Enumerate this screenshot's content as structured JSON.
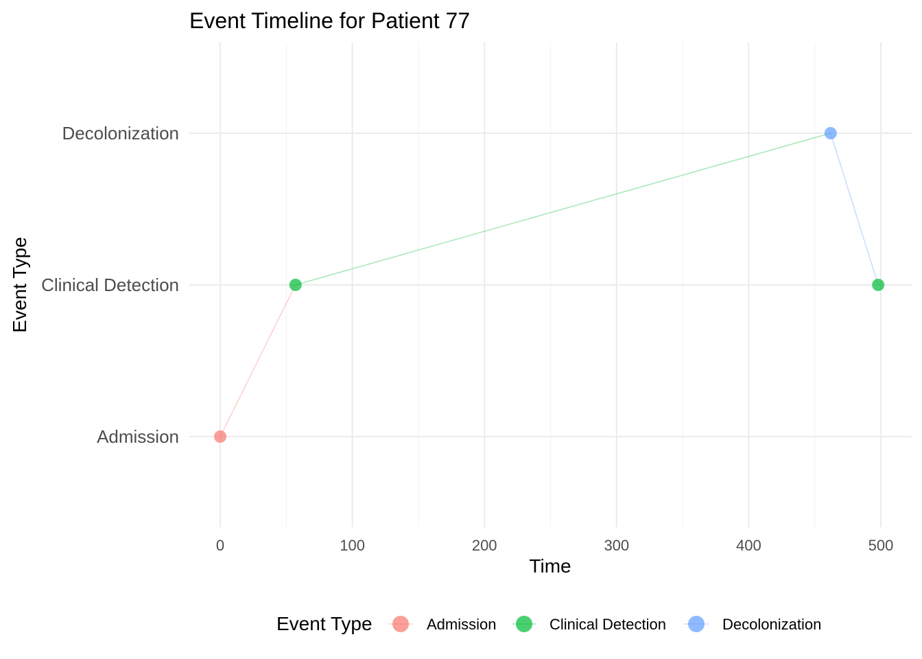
{
  "chart_data": {
    "type": "line",
    "title": "Event Timeline for Patient 77",
    "xlabel": "Time",
    "ylabel": "Event Type",
    "xlim": [
      -25,
      525
    ],
    "x_ticks": [
      0,
      100,
      200,
      300,
      400,
      500
    ],
    "x_tick_labels": [
      "0",
      "100",
      "200",
      "300",
      "400",
      "500"
    ],
    "categories": [
      "Admission",
      "Clinical Detection",
      "Decolonization"
    ],
    "points": [
      {
        "x": 0,
        "y": "Admission"
      },
      {
        "x": 57,
        "y": "Clinical Detection"
      },
      {
        "x": 462,
        "y": "Decolonization"
      },
      {
        "x": 498,
        "y": "Clinical Detection"
      }
    ],
    "grid": true,
    "legend": {
      "title": "Event Type",
      "position": "bottom",
      "entries": [
        {
          "label": "Admission",
          "color": "#F8766D"
        },
        {
          "label": "Clinical Detection",
          "color": "#00BA38"
        },
        {
          "label": "Decolonization",
          "color": "#619CFF"
        }
      ]
    }
  }
}
